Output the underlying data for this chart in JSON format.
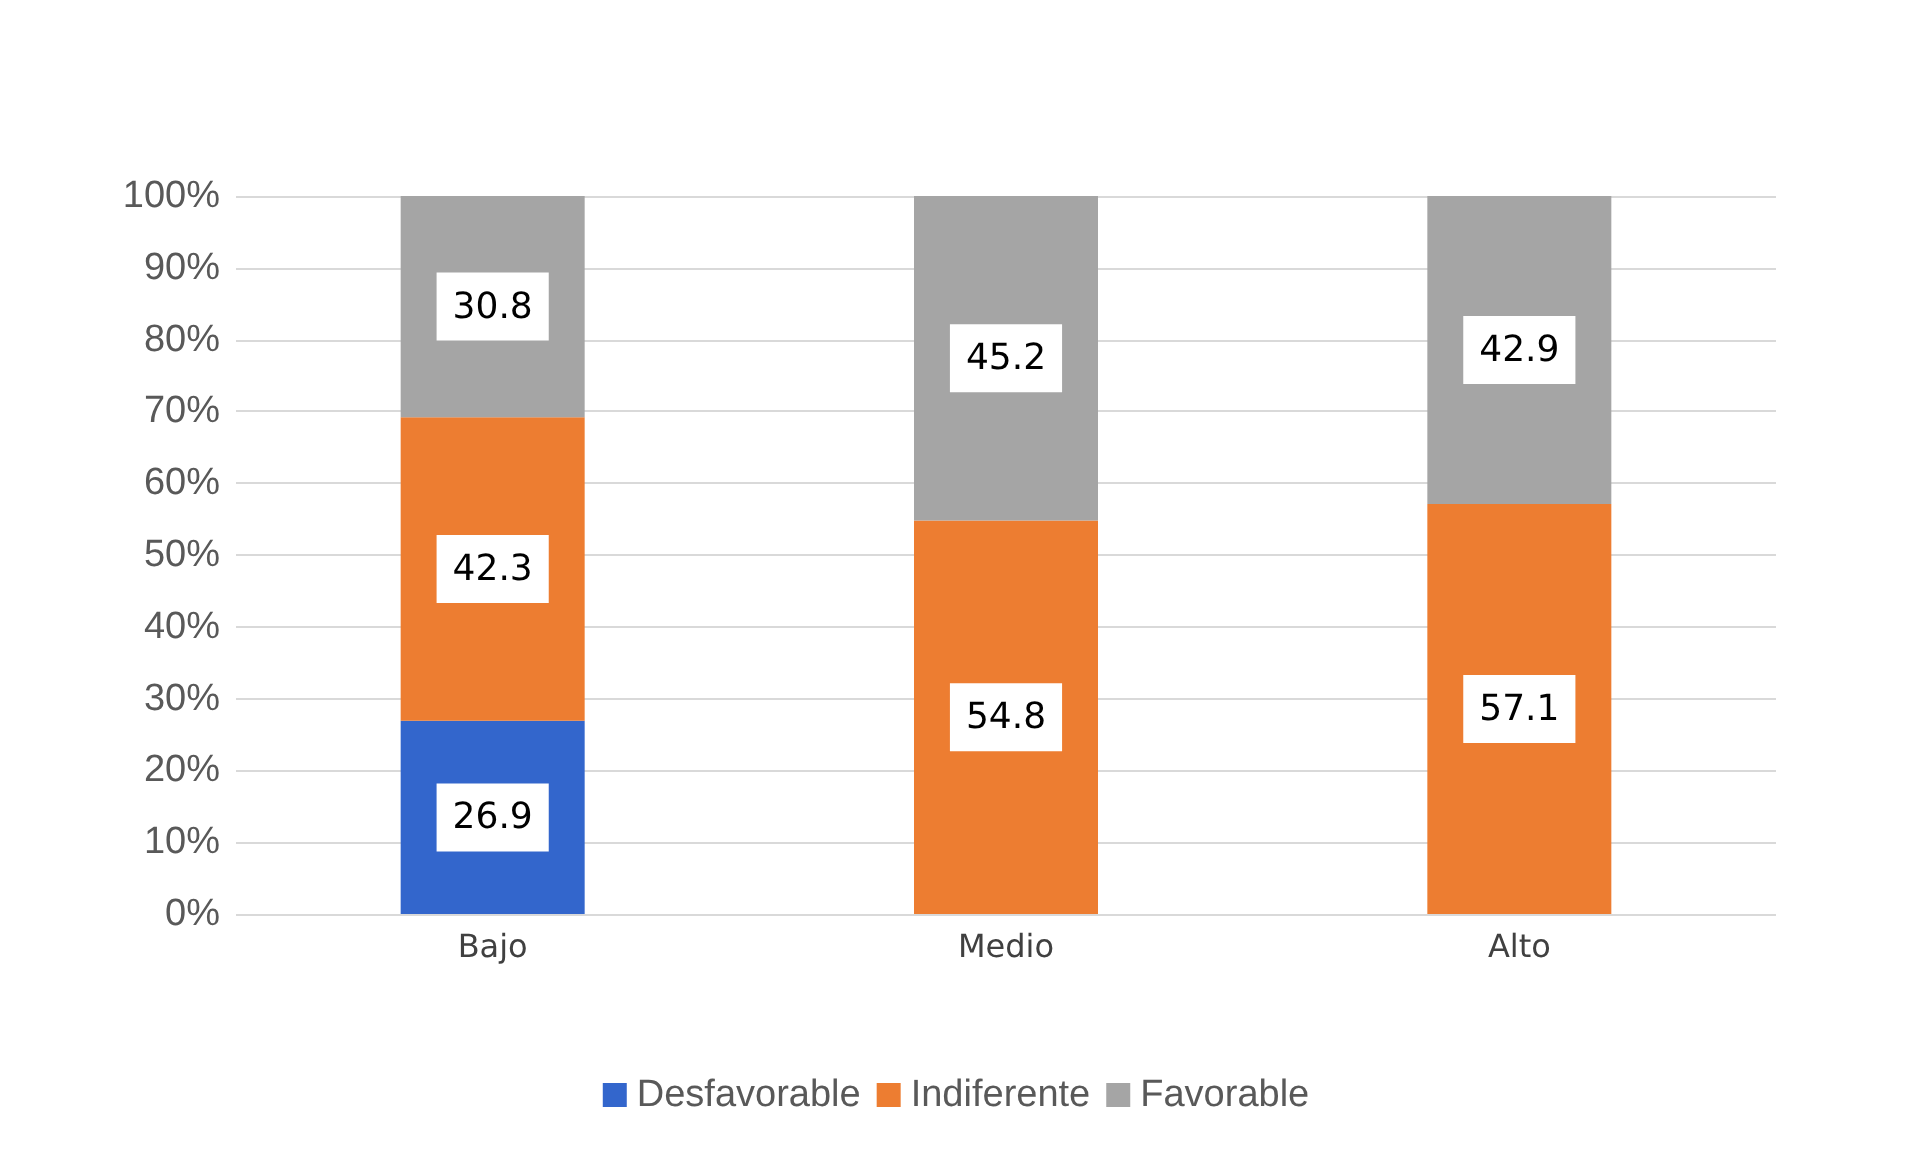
{
  "chart_data": {
    "type": "bar",
    "stacked": true,
    "categories": [
      "Bajo",
      "Medio",
      "Alto"
    ],
    "series": [
      {
        "name": "Desfavorable",
        "color": "#3366cc",
        "values": [
          26.9,
          null,
          null
        ]
      },
      {
        "name": "Indiferente",
        "color": "#ed7d31",
        "values": [
          42.3,
          54.8,
          57.1
        ]
      },
      {
        "name": "Favorable",
        "color": "#a5a5a5",
        "values": [
          30.8,
          45.2,
          42.9
        ]
      }
    ],
    "ylim": [
      0,
      100
    ],
    "yticks": [
      {
        "value": 0,
        "label": "0%"
      },
      {
        "value": 10,
        "label": "10%"
      },
      {
        "value": 20,
        "label": "20%"
      },
      {
        "value": 30,
        "label": "30%"
      },
      {
        "value": 40,
        "label": "40%"
      },
      {
        "value": 50,
        "label": "50%"
      },
      {
        "value": 60,
        "label": "60%"
      },
      {
        "value": 70,
        "label": "70%"
      },
      {
        "value": 80,
        "label": "80%"
      },
      {
        "value": 90,
        "label": "90%"
      },
      {
        "value": 100,
        "label": "100%"
      }
    ],
    "grid": "y",
    "legend": "bottom",
    "data_labels": true
  }
}
